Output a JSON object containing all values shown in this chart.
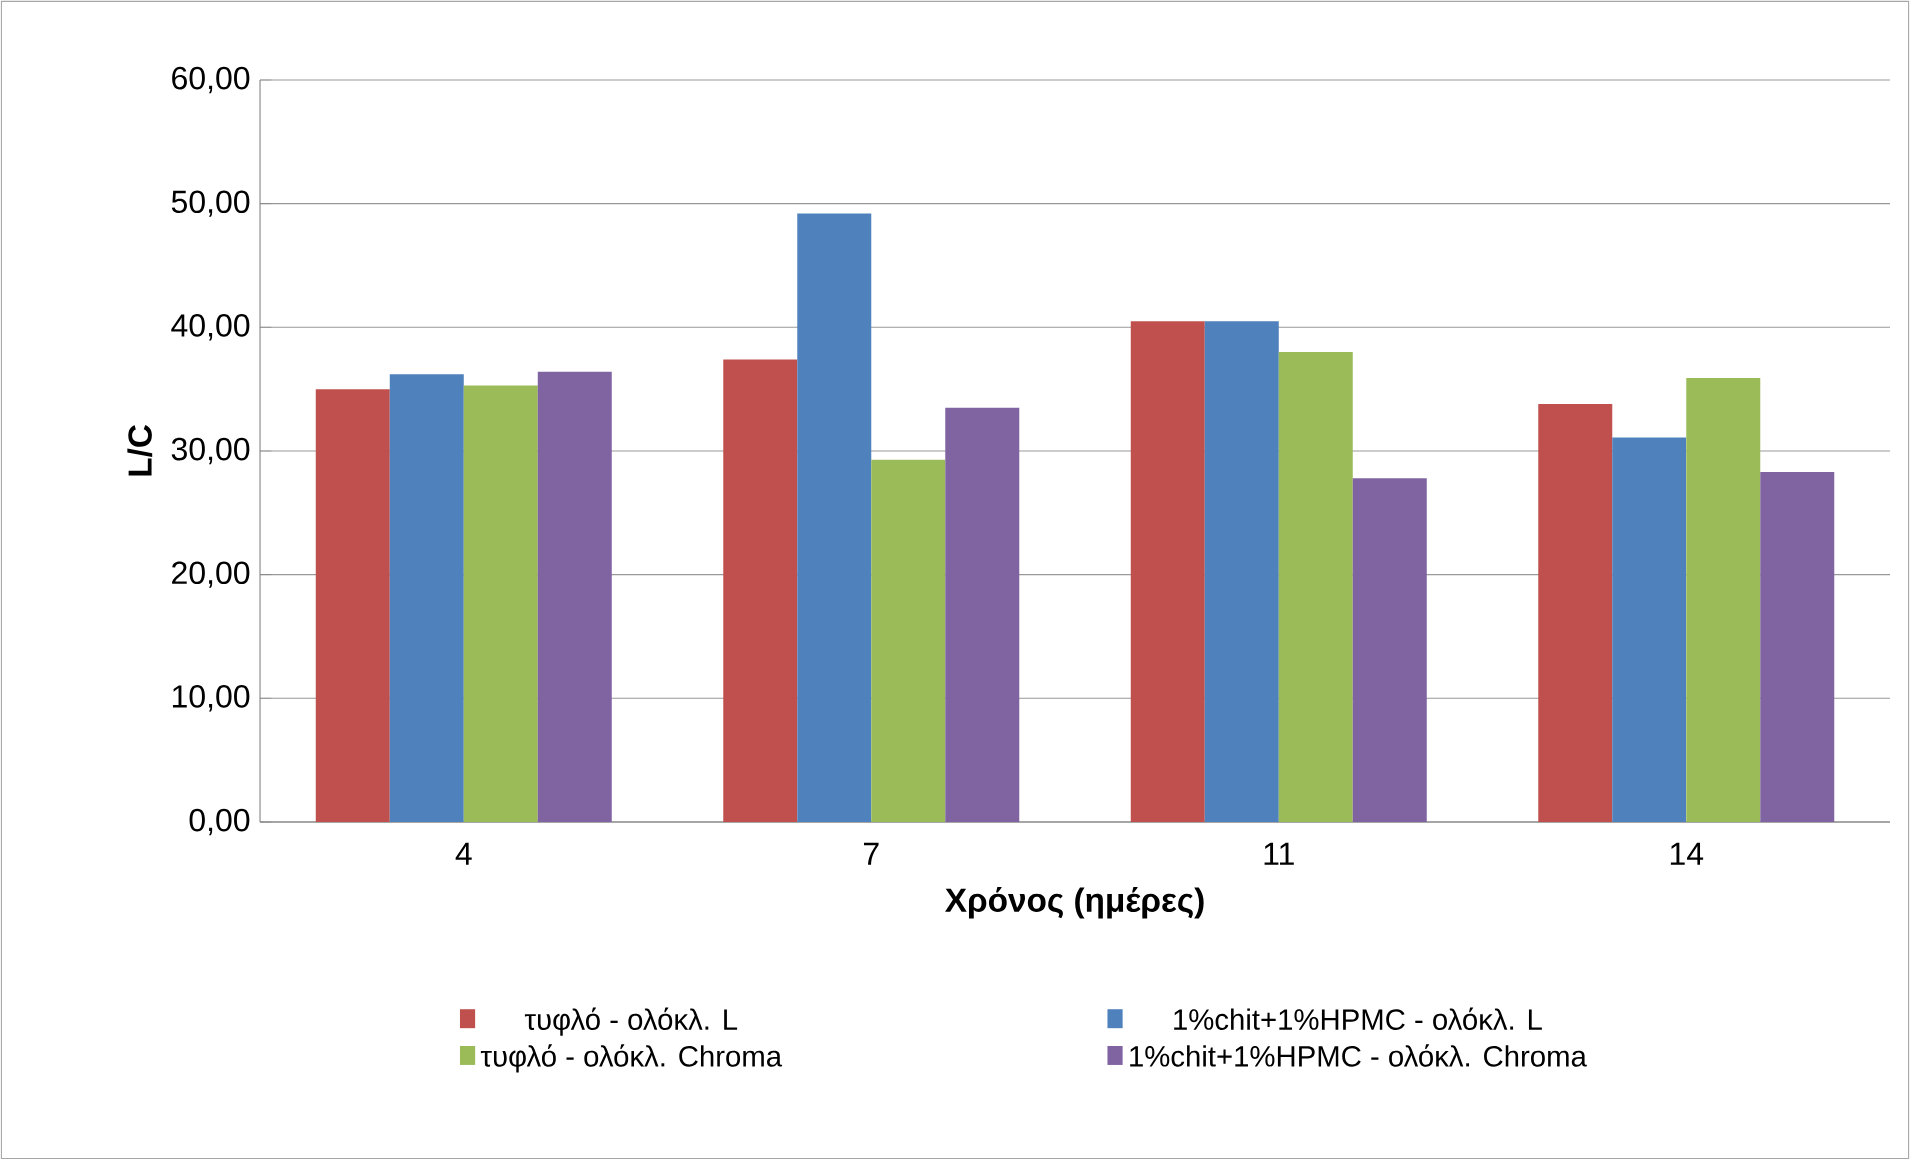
{
  "chart_data": {
    "type": "bar",
    "xlabel": "Χρόνος (ημέρες)",
    "ylabel": "L/C",
    "categories": [
      "4",
      "7",
      "11",
      "14"
    ],
    "series": [
      {
        "name": "τυφλό - ολόκλ. L",
        "color": "#c0504d",
        "values": [
          35.0,
          37.4,
          40.5,
          33.8
        ]
      },
      {
        "name": "1%chit+1%HPMC - ολόκλ. L",
        "color": "#4f81bd",
        "values": [
          36.2,
          49.2,
          40.5,
          31.1
        ]
      },
      {
        "name": "τυφλό - ολόκλ. Chroma",
        "color": "#9bbb59",
        "values": [
          35.3,
          29.3,
          38.0,
          35.9
        ]
      },
      {
        "name": "1%chit+1%HPMC - ολόκλ. Chroma",
        "color": "#8064a2",
        "values": [
          36.4,
          33.5,
          27.8,
          28.3
        ]
      }
    ],
    "ylim": [
      0,
      60
    ],
    "yticks": [
      {
        "value": 0,
        "label": "0,00"
      },
      {
        "value": 10,
        "label": "10,00"
      },
      {
        "value": 20,
        "label": "20,00"
      },
      {
        "value": 30,
        "label": "30,00"
      },
      {
        "value": 40,
        "label": "40,00"
      },
      {
        "value": 50,
        "label": "50,00"
      },
      {
        "value": 60,
        "label": "60,00"
      }
    ],
    "grid": "y",
    "legend": "bottom"
  }
}
